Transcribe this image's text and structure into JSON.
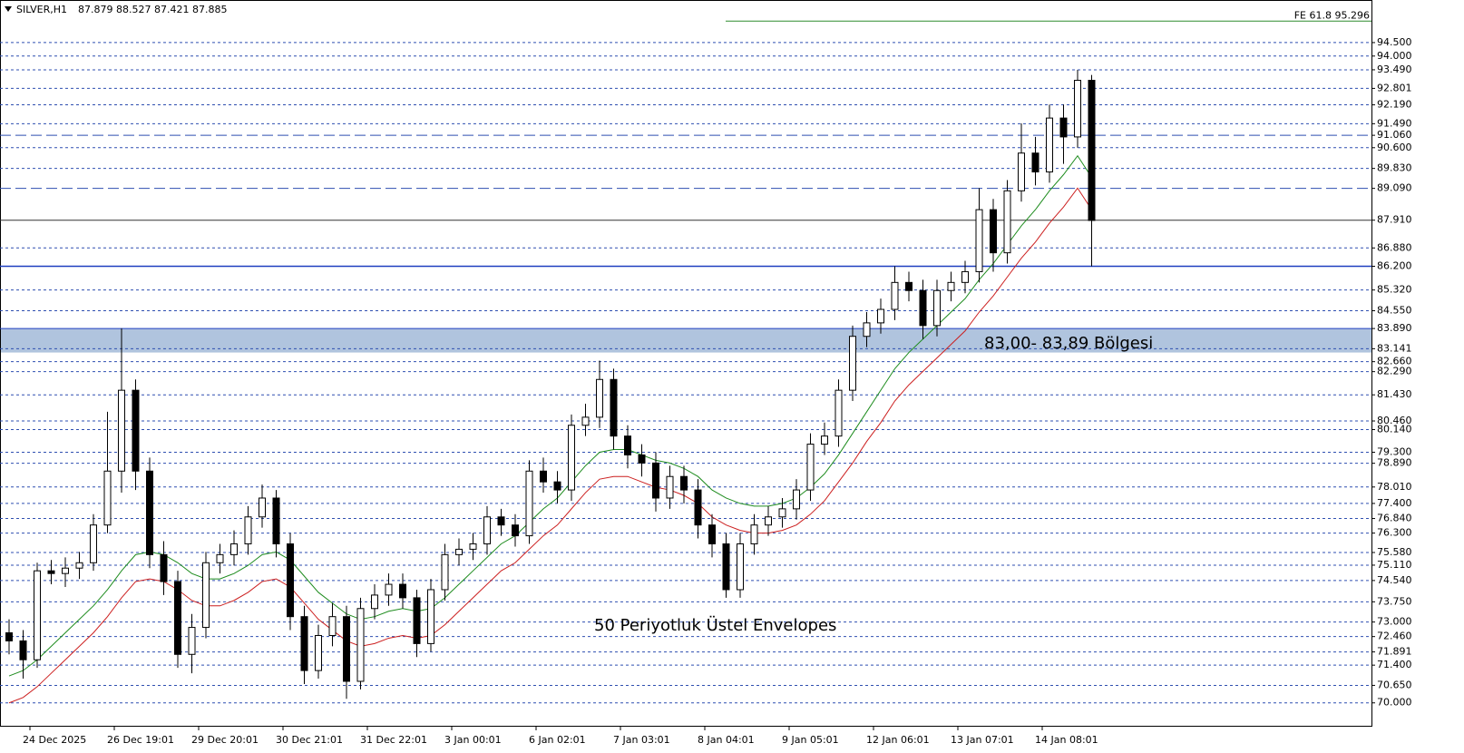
{
  "chart_data": {
    "type": "candlestick",
    "title": "SILVER,H1",
    "header_values": [
      87.879,
      88.527,
      87.421,
      87.885
    ],
    "annotations": [
      "83,00- 83,89 Bölgesi",
      "50 Periyotluk Üstel Envelopes"
    ],
    "fe_level": {
      "label": "FE 61.8 95.296",
      "value": 95.296,
      "color": "#2e8b2e"
    },
    "zone": {
      "from": 83.0,
      "to": 83.89,
      "color": "#b0c4de"
    },
    "ylim": [
      69.15,
      96.08
    ],
    "yticks": [
      {
        "value": 94.5,
        "label": "94.500"
      },
      {
        "value": 94.0,
        "label": "94.000"
      },
      {
        "value": 93.49,
        "label": "93.490"
      },
      {
        "value": 92.801,
        "label": "92.801"
      },
      {
        "value": 92.19,
        "label": "92.190"
      },
      {
        "value": 91.49,
        "label": "91.490"
      },
      {
        "value": 91.06,
        "label": "91.060",
        "style": "long-dash"
      },
      {
        "value": 90.6,
        "label": "90.600"
      },
      {
        "value": 89.83,
        "label": "89.830"
      },
      {
        "value": 89.09,
        "label": "89.090",
        "style": "long-dash"
      },
      {
        "value": 87.91,
        "label": "87.910",
        "style": "solid"
      },
      {
        "value": 86.88,
        "label": "86.880"
      },
      {
        "value": 86.2,
        "label": "86.200",
        "style": "solid"
      },
      {
        "value": 85.32,
        "label": "85.320"
      },
      {
        "value": 84.55,
        "label": "84.550"
      },
      {
        "value": 83.89,
        "label": "83.890",
        "style": "solid"
      },
      {
        "value": 83.141,
        "label": "83.141"
      },
      {
        "value": 82.66,
        "label": "82.660"
      },
      {
        "value": 82.29,
        "label": "82.290"
      },
      {
        "value": 81.43,
        "label": "81.430"
      },
      {
        "value": 80.46,
        "label": "80.460"
      },
      {
        "value": 80.14,
        "label": "80.140"
      },
      {
        "value": 79.3,
        "label": "79.300"
      },
      {
        "value": 78.89,
        "label": "78.890"
      },
      {
        "value": 78.01,
        "label": "78.010"
      },
      {
        "value": 77.4,
        "label": "77.400"
      },
      {
        "value": 76.84,
        "label": "76.840"
      },
      {
        "value": 76.3,
        "label": "76.300"
      },
      {
        "value": 75.58,
        "label": "75.580"
      },
      {
        "value": 75.11,
        "label": "75.110"
      },
      {
        "value": 74.54,
        "label": "74.540"
      },
      {
        "value": 73.75,
        "label": "73.750"
      },
      {
        "value": 73.0,
        "label": "73.000"
      },
      {
        "value": 72.46,
        "label": "72.460"
      },
      {
        "value": 71.891,
        "label": "71.891"
      },
      {
        "value": 71.4,
        "label": "71.400"
      },
      {
        "value": 70.65,
        "label": "70.650"
      },
      {
        "value": 70.0,
        "label": "70.000"
      }
    ],
    "categories": [
      null,
      null,
      "24 Dec 2025",
      null,
      null,
      null,
      null,
      null,
      "26 Dec 19:01",
      null,
      null,
      null,
      null,
      null,
      "29 Dec 20:01",
      null,
      null,
      null,
      null,
      null,
      "30 Dec 21:01",
      null,
      null,
      null,
      null,
      null,
      "31 Dec 22:01",
      null,
      null,
      null,
      null,
      null,
      "3 Jan 00:01",
      null,
      null,
      null,
      null,
      null,
      "6 Jan 02:01",
      null,
      null,
      null,
      null,
      null,
      "7 Jan 03:01",
      null,
      null,
      null,
      null,
      null,
      "8 Jan 04:01",
      null,
      null,
      null,
      null,
      null,
      "9 Jan 05:01",
      null,
      null,
      null,
      null,
      null,
      "12 Jan 06:01",
      null,
      null,
      null,
      null,
      null,
      "13 Jan 07:01",
      null,
      null,
      null,
      null,
      null,
      "14 Jan 08:01",
      null,
      null,
      null
    ],
    "open": [
      72.6,
      72.3,
      71.6,
      74.9,
      74.8,
      75.0,
      75.2,
      76.6,
      78.6,
      81.6,
      78.6,
      75.5,
      74.5,
      71.8,
      72.8,
      75.2,
      75.5,
      75.9,
      76.9,
      77.6,
      75.9,
      73.2,
      71.2,
      72.5,
      73.2,
      70.8,
      73.5,
      74.0,
      74.4,
      73.9,
      72.2,
      74.2,
      75.5,
      75.7,
      75.9,
      76.9,
      76.6,
      76.2,
      78.6,
      78.2,
      77.9,
      80.3,
      80.6,
      82.0,
      79.9,
      79.2,
      78.9,
      77.6,
      78.4,
      77.9,
      76.6,
      75.9,
      74.2,
      75.9,
      76.6,
      76.9,
      77.2,
      77.9,
      79.6,
      79.9,
      81.6,
      83.6,
      84.1,
      84.6,
      85.6,
      85.3,
      84.0,
      85.3,
      85.6,
      86.0,
      88.3,
      86.7,
      89.0,
      90.4,
      89.7,
      91.7,
      91.0,
      93.1
    ],
    "high": [
      73.1,
      72.7,
      75.2,
      75.3,
      75.4,
      75.6,
      77.0,
      80.8,
      83.9,
      82.0,
      79.1,
      76.0,
      74.9,
      73.3,
      75.6,
      75.9,
      76.4,
      77.3,
      78.1,
      77.9,
      76.3,
      73.6,
      72.9,
      73.7,
      73.6,
      73.9,
      74.4,
      74.8,
      74.8,
      74.2,
      74.6,
      75.9,
      76.1,
      76.3,
      77.3,
      77.2,
      77.0,
      79.0,
      79.1,
      78.6,
      80.7,
      81.1,
      82.7,
      82.4,
      80.3,
      79.6,
      79.3,
      78.8,
      78.8,
      78.3,
      77.0,
      76.3,
      76.3,
      77.0,
      77.3,
      77.6,
      78.3,
      80.0,
      80.4,
      82.0,
      84.0,
      84.5,
      85.0,
      86.2,
      86.0,
      85.7,
      85.7,
      86.0,
      86.4,
      89.1,
      88.7,
      89.4,
      91.5,
      91.0,
      92.2,
      92.2,
      93.49,
      93.3
    ],
    "low": [
      71.8,
      70.9,
      71.3,
      74.4,
      74.3,
      74.6,
      74.9,
      76.3,
      77.8,
      77.9,
      75.0,
      74.0,
      71.3,
      71.1,
      72.4,
      74.8,
      75.1,
      75.5,
      76.5,
      75.4,
      72.7,
      70.7,
      70.9,
      72.1,
      70.15,
      70.5,
      73.1,
      73.6,
      73.5,
      71.7,
      71.9,
      73.8,
      75.1,
      75.3,
      75.5,
      76.2,
      75.8,
      75.9,
      77.8,
      77.4,
      77.5,
      79.9,
      80.2,
      79.4,
      78.7,
      78.4,
      77.1,
      77.2,
      77.4,
      76.1,
      75.4,
      73.9,
      73.9,
      75.5,
      76.2,
      76.5,
      76.8,
      77.5,
      79.2,
      79.5,
      81.2,
      83.2,
      83.7,
      84.2,
      84.9,
      83.5,
      83.6,
      84.9,
      85.2,
      85.6,
      86.0,
      86.3,
      88.6,
      89.2,
      89.3,
      90.0,
      90.6,
      86.2
    ],
    "close": [
      72.3,
      71.6,
      74.9,
      74.8,
      75.0,
      75.2,
      76.6,
      78.6,
      81.6,
      78.6,
      75.5,
      74.5,
      71.8,
      72.8,
      75.2,
      75.5,
      75.9,
      76.9,
      77.6,
      75.9,
      73.2,
      71.2,
      72.5,
      73.2,
      70.8,
      73.5,
      74.0,
      74.4,
      73.9,
      72.2,
      74.2,
      75.5,
      75.7,
      75.9,
      76.9,
      76.6,
      76.2,
      78.6,
      78.2,
      77.9,
      80.3,
      80.6,
      82.0,
      79.9,
      79.2,
      78.9,
      77.6,
      78.4,
      77.9,
      76.6,
      75.9,
      74.2,
      75.9,
      76.6,
      76.9,
      77.2,
      77.9,
      79.6,
      79.9,
      81.6,
      83.6,
      84.1,
      84.6,
      85.6,
      85.3,
      84.0,
      85.3,
      85.6,
      86.0,
      88.3,
      86.7,
      89.0,
      90.4,
      89.7,
      91.7,
      91.0,
      93.1,
      87.9
    ],
    "bull_color": "#ffffff",
    "bear_color": "#000000",
    "wick_color": "#000000",
    "series": [
      {
        "color": "#1e8c1e",
        "values": [
          71.0,
          71.2,
          71.6,
          72.1,
          72.6,
          73.1,
          73.6,
          74.2,
          74.9,
          75.5,
          75.6,
          75.5,
          75.2,
          74.8,
          74.6,
          74.6,
          74.8,
          75.1,
          75.5,
          75.6,
          75.3,
          74.7,
          74.1,
          73.7,
          73.3,
          73.1,
          73.2,
          73.4,
          73.5,
          73.4,
          73.5,
          73.9,
          74.4,
          74.9,
          75.4,
          75.9,
          76.2,
          76.7,
          77.2,
          77.6,
          78.2,
          78.8,
          79.3,
          79.4,
          79.4,
          79.2,
          79.0,
          78.9,
          78.7,
          78.4,
          77.9,
          77.6,
          77.4,
          77.3,
          77.3,
          77.4,
          77.6,
          78.0,
          78.5,
          79.2,
          80.0,
          80.8,
          81.6,
          82.4,
          83.0,
          83.5,
          84.0,
          84.5,
          85.0,
          85.7,
          86.3,
          87.0,
          87.7,
          88.3,
          89.0,
          89.6,
          90.3,
          89.5
        ]
      },
      {
        "color": "#cc1f1f",
        "values": [
          70.0,
          70.2,
          70.6,
          71.1,
          71.6,
          72.1,
          72.6,
          73.2,
          73.9,
          74.5,
          74.6,
          74.5,
          74.2,
          73.8,
          73.6,
          73.6,
          73.8,
          74.1,
          74.5,
          74.6,
          74.3,
          73.7,
          73.1,
          72.7,
          72.3,
          72.1,
          72.2,
          72.4,
          72.5,
          72.4,
          72.5,
          72.9,
          73.4,
          73.9,
          74.4,
          74.9,
          75.2,
          75.7,
          76.2,
          76.6,
          77.2,
          77.8,
          78.3,
          78.4,
          78.4,
          78.2,
          78.0,
          77.9,
          77.7,
          77.4,
          76.9,
          76.6,
          76.4,
          76.3,
          76.3,
          76.4,
          76.6,
          77.0,
          77.5,
          78.2,
          78.9,
          79.7,
          80.4,
          81.2,
          81.8,
          82.3,
          82.8,
          83.3,
          83.8,
          84.5,
          85.1,
          85.8,
          86.5,
          87.1,
          87.8,
          88.4,
          89.1,
          88.3
        ]
      }
    ],
    "grid": true
  }
}
